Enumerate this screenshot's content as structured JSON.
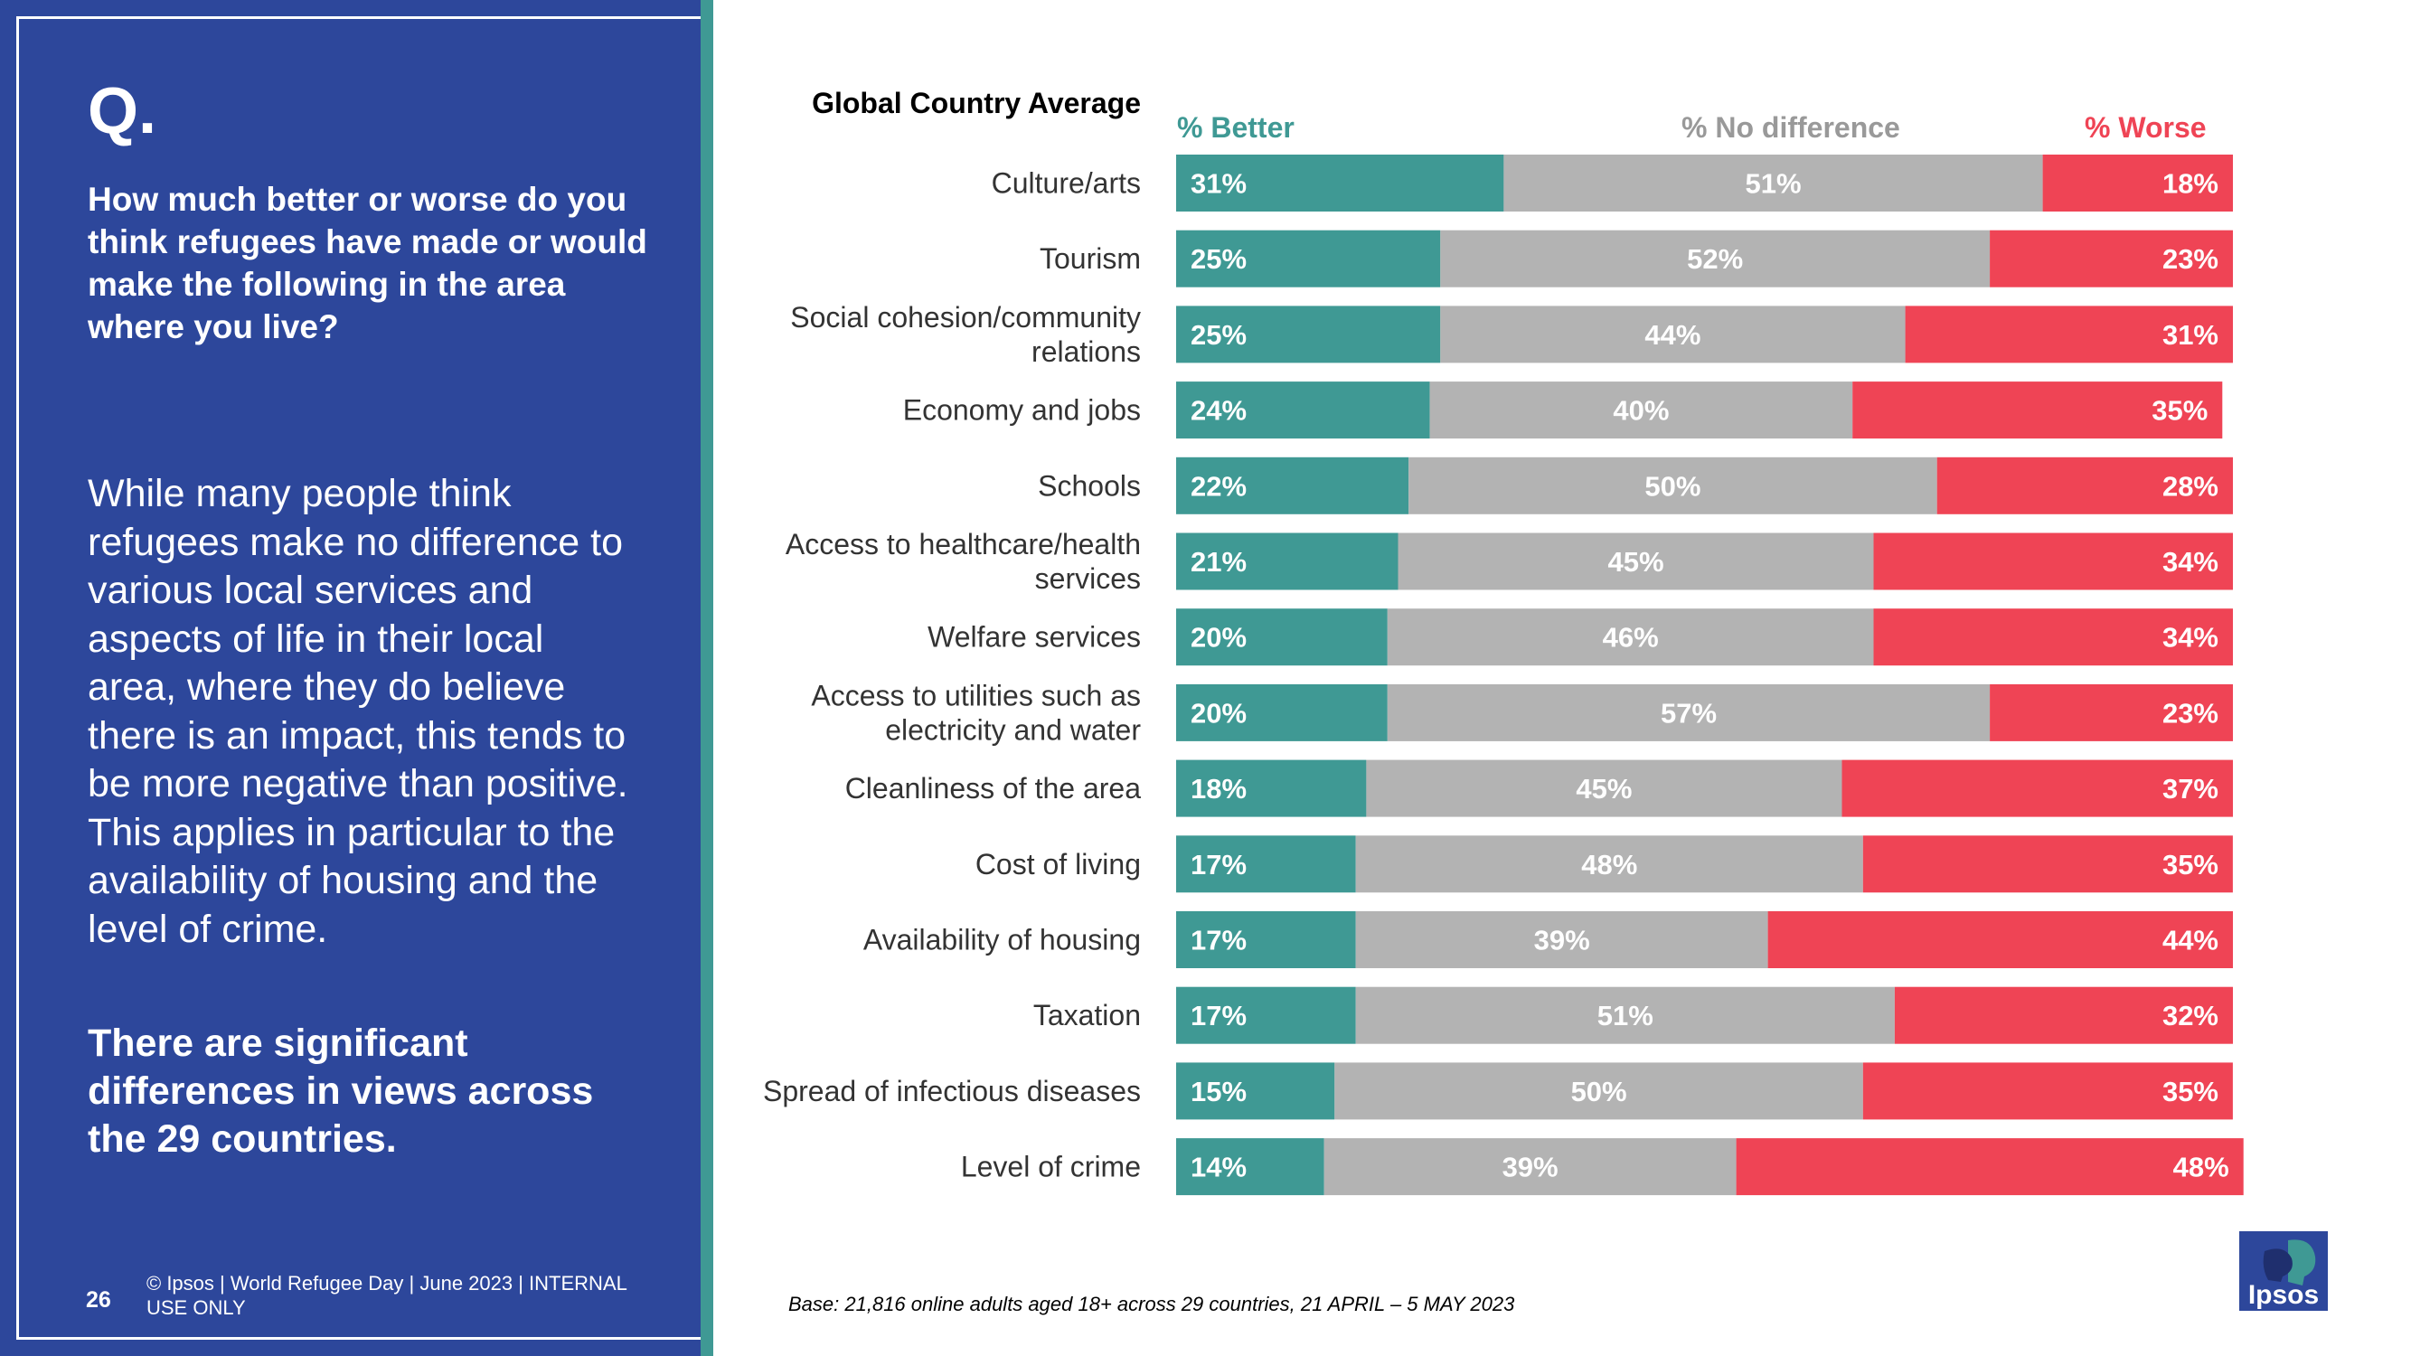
{
  "sidebar": {
    "q_label": "Q.",
    "question": "How much better or worse do you think refugees have made or would make the following in the area where you live?",
    "body": "While many people think refugees make no difference to various local services and aspects of life in their local area, where they do believe there is an impact, this tends to be more negative than positive. This applies in particular to the availability of housing and the level of crime.",
    "emphasis": "There are significant differences in views across the 29 countries.",
    "page_number": "26",
    "copyright": "© Ipsos | World Refugee Day | June 2023 | INTERNAL USE ONLY"
  },
  "footer": {
    "base_note": "Base: 21,816 online adults aged 18+ across 29 countries,  21 APRIL – 5 MAY 2023",
    "logo_text": "Ipsos"
  },
  "colors": {
    "better": "#3f9994",
    "no_difference": "#b3b3b3",
    "worse": "#ef4455",
    "panel": "#2d479b"
  },
  "chart_data": {
    "type": "bar",
    "orientation": "horizontal",
    "stacked": true,
    "title": "Global Country Average",
    "categories": [
      "Culture/arts",
      "Tourism",
      "Social cohesion/community relations",
      "Economy and jobs",
      "Schools",
      "Access to healthcare/health services",
      "Welfare services",
      "Access to utilities such as electricity and water",
      "Cleanliness of the area",
      "Cost of living",
      "Availability of housing",
      "Taxation",
      "Spread of infectious diseases",
      "Level of crime"
    ],
    "category_lines": [
      [
        "Culture/arts"
      ],
      [
        "Tourism"
      ],
      [
        "Social cohesion/community",
        "relations"
      ],
      [
        "Economy and jobs"
      ],
      [
        "Schools"
      ],
      [
        "Access to healthcare/health",
        "services"
      ],
      [
        "Welfare services"
      ],
      [
        "Access to utilities such as",
        "electricity and water"
      ],
      [
        "Cleanliness of the area"
      ],
      [
        "Cost of living"
      ],
      [
        "Availability of housing"
      ],
      [
        "Taxation"
      ],
      [
        "Spread of infectious diseases"
      ],
      [
        "Level of crime"
      ]
    ],
    "series": [
      {
        "name": "% Better",
        "values": [
          31,
          25,
          25,
          24,
          22,
          21,
          20,
          20,
          18,
          17,
          17,
          17,
          15,
          14
        ]
      },
      {
        "name": "% No difference",
        "values": [
          51,
          52,
          44,
          40,
          50,
          45,
          46,
          57,
          45,
          48,
          39,
          51,
          50,
          39
        ]
      },
      {
        "name": "% Worse",
        "values": [
          18,
          23,
          31,
          35,
          28,
          34,
          34,
          23,
          37,
          35,
          44,
          32,
          35,
          48
        ]
      }
    ],
    "xlim": [
      0,
      100
    ],
    "unit": "%",
    "legend_position": "top"
  }
}
